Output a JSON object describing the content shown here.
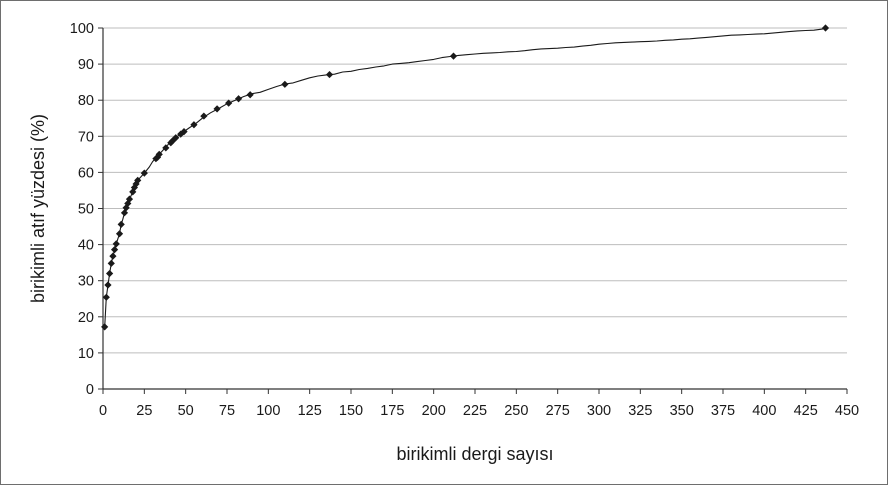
{
  "chart_data": {
    "type": "line",
    "title": "",
    "xlabel": "birikimli dergi sayısı",
    "ylabel": "birikimli atıf yüzdesi (%)",
    "xlim": [
      0,
      450
    ],
    "ylim": [
      0,
      100
    ],
    "x_ticks": [
      0,
      25,
      50,
      75,
      100,
      125,
      150,
      175,
      200,
      225,
      250,
      275,
      300,
      325,
      350,
      375,
      400,
      425,
      450
    ],
    "y_ticks": [
      0,
      10,
      20,
      30,
      40,
      50,
      60,
      70,
      80,
      90,
      100
    ],
    "grid": "horizontal",
    "legend": "none",
    "colors": {
      "line": "#1a1a1a",
      "marker": "#1a1a1a",
      "grid": "#bdbdbd",
      "axis": "#333333"
    },
    "series": [
      {
        "line": [
          [
            1,
            17.2
          ],
          [
            2,
            25.4
          ],
          [
            3,
            28.8
          ],
          [
            4,
            32.0
          ],
          [
            5,
            34.8
          ],
          [
            6,
            36.8
          ],
          [
            7,
            38.6
          ],
          [
            8,
            40.2
          ],
          [
            10,
            43.0
          ],
          [
            11,
            45.6
          ],
          [
            12,
            47.0
          ],
          [
            13,
            48.8
          ],
          [
            14,
            50.2
          ],
          [
            15,
            51.4
          ],
          [
            16,
            52.6
          ],
          [
            18,
            54.6
          ],
          [
            19,
            55.8
          ],
          [
            20,
            56.8
          ],
          [
            21,
            57.8
          ],
          [
            23,
            58.8
          ],
          [
            25,
            59.8
          ],
          [
            28,
            61.5
          ],
          [
            30,
            63.0
          ],
          [
            32,
            64.0
          ],
          [
            34,
            65.0
          ],
          [
            36,
            66.0
          ],
          [
            38,
            67.0
          ],
          [
            40,
            68.0
          ],
          [
            42,
            69.0
          ],
          [
            45,
            70.0
          ],
          [
            48,
            71.0
          ],
          [
            52,
            72.3
          ],
          [
            56,
            73.5
          ],
          [
            60,
            75.0
          ],
          [
            65,
            76.5
          ],
          [
            70,
            77.7
          ],
          [
            75,
            79.0
          ],
          [
            80,
            80.0
          ],
          [
            85,
            81.0
          ],
          [
            90,
            81.8
          ],
          [
            95,
            82.2
          ],
          [
            100,
            83.0
          ],
          [
            105,
            83.8
          ],
          [
            110,
            84.5
          ],
          [
            115,
            84.8
          ],
          [
            120,
            85.5
          ],
          [
            125,
            86.2
          ],
          [
            130,
            86.7
          ],
          [
            135,
            87.0
          ],
          [
            140,
            87.2
          ],
          [
            145,
            87.8
          ],
          [
            150,
            88.0
          ],
          [
            155,
            88.5
          ],
          [
            160,
            88.8
          ],
          [
            165,
            89.2
          ],
          [
            170,
            89.5
          ],
          [
            175,
            90.0
          ],
          [
            180,
            90.2
          ],
          [
            185,
            90.4
          ],
          [
            190,
            90.7
          ],
          [
            195,
            91.0
          ],
          [
            200,
            91.3
          ],
          [
            205,
            91.8
          ],
          [
            210,
            92.1
          ],
          [
            215,
            92.4
          ],
          [
            220,
            92.6
          ],
          [
            225,
            92.8
          ],
          [
            230,
            93.0
          ],
          [
            235,
            93.1
          ],
          [
            240,
            93.2
          ],
          [
            245,
            93.4
          ],
          [
            250,
            93.5
          ],
          [
            255,
            93.7
          ],
          [
            260,
            94.0
          ],
          [
            265,
            94.2
          ],
          [
            270,
            94.3
          ],
          [
            275,
            94.4
          ],
          [
            280,
            94.6
          ],
          [
            285,
            94.7
          ],
          [
            290,
            95.0
          ],
          [
            295,
            95.2
          ],
          [
            300,
            95.5
          ],
          [
            305,
            95.7
          ],
          [
            310,
            95.9
          ],
          [
            315,
            96.0
          ],
          [
            320,
            96.1
          ],
          [
            325,
            96.2
          ],
          [
            330,
            96.3
          ],
          [
            335,
            96.4
          ],
          [
            340,
            96.6
          ],
          [
            345,
            96.7
          ],
          [
            350,
            96.9
          ],
          [
            355,
            97.0
          ],
          [
            360,
            97.2
          ],
          [
            365,
            97.4
          ],
          [
            370,
            97.6
          ],
          [
            375,
            97.8
          ],
          [
            380,
            98.0
          ],
          [
            385,
            98.1
          ],
          [
            390,
            98.2
          ],
          [
            395,
            98.3
          ],
          [
            400,
            98.4
          ],
          [
            405,
            98.6
          ],
          [
            410,
            98.8
          ],
          [
            415,
            99.0
          ],
          [
            420,
            99.2
          ],
          [
            425,
            99.3
          ],
          [
            430,
            99.4
          ],
          [
            435,
            99.7
          ],
          [
            437,
            100.0
          ]
        ],
        "markers": [
          [
            1,
            17.2
          ],
          [
            2,
            25.4
          ],
          [
            3,
            28.8
          ],
          [
            4,
            32.0
          ],
          [
            5,
            34.8
          ],
          [
            6,
            36.8
          ],
          [
            7,
            38.6
          ],
          [
            8,
            40.2
          ],
          [
            10,
            43.0
          ],
          [
            11,
            45.6
          ],
          [
            13,
            48.8
          ],
          [
            14,
            50.2
          ],
          [
            15,
            51.4
          ],
          [
            16,
            52.6
          ],
          [
            18,
            54.6
          ],
          [
            19,
            55.8
          ],
          [
            20,
            56.8
          ],
          [
            21,
            57.8
          ],
          [
            25,
            59.8
          ],
          [
            32,
            63.8
          ],
          [
            33,
            64.2
          ],
          [
            34,
            65.0
          ],
          [
            38,
            66.8
          ],
          [
            41,
            68.2
          ],
          [
            42,
            68.7
          ],
          [
            44,
            69.6
          ],
          [
            47,
            70.6
          ],
          [
            49,
            71.3
          ],
          [
            55,
            73.2
          ],
          [
            61,
            75.6
          ],
          [
            69,
            77.6
          ],
          [
            76,
            79.2
          ],
          [
            82,
            80.4
          ],
          [
            89,
            81.5
          ],
          [
            110,
            84.4
          ],
          [
            137,
            87.1
          ],
          [
            212,
            92.2
          ],
          [
            437,
            100.0
          ]
        ]
      }
    ]
  }
}
